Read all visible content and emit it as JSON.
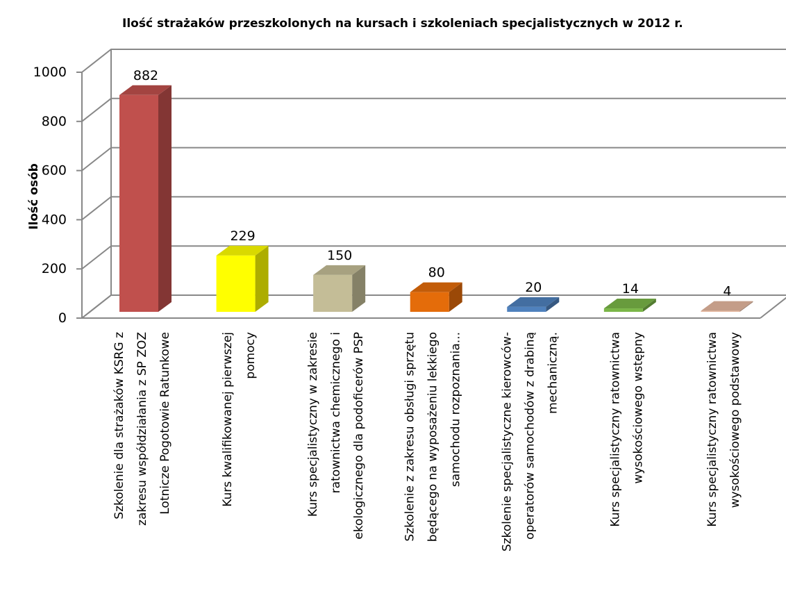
{
  "chart_data": {
    "type": "bar3d",
    "title": "Ilość strażaków przeszkolonych na kursach i szkoleniach specjalistycznych w 2012 r.",
    "y_label": "Ilość osób",
    "categories": [
      "Szkolenie dla strażaków KSRG z\nzakresu współdziałania z SP ZOZ\nLotnicze Pogotowie Ratunkowe",
      "Kurs kwalifikowanej pierwszej\npomocy",
      "Kurs specjalistyczny w zakresie\nratownictwa chemicznego i\nekologicznego dla podoficerów PSP",
      "Szkolenie z zakresu obsługi sprzętu\nbędącego na wyposażeniu lekkiego\nsamochodu rozpoznania...",
      "Szkolenie specjalistyczne kierowców-\noperatorów samochodów z drabiną\nmechaniczną.",
      "Kurs specjalistyczny ratownictwa\nwysokościowego wstępny",
      "Kurs specjalistyczny ratownictwa\nwysokościowego podstawowy"
    ],
    "values": [
      882,
      229,
      150,
      80,
      20,
      14,
      4
    ],
    "colors": [
      "#c0504d",
      "#ffff00",
      "#c4bd97",
      "#e46c0a",
      "#4f81bd",
      "#7ab648",
      "#e6b9a0"
    ],
    "ylim": [
      0,
      1000
    ],
    "yticks": [
      0,
      200,
      400,
      600,
      800,
      1000
    ],
    "grid": true
  }
}
